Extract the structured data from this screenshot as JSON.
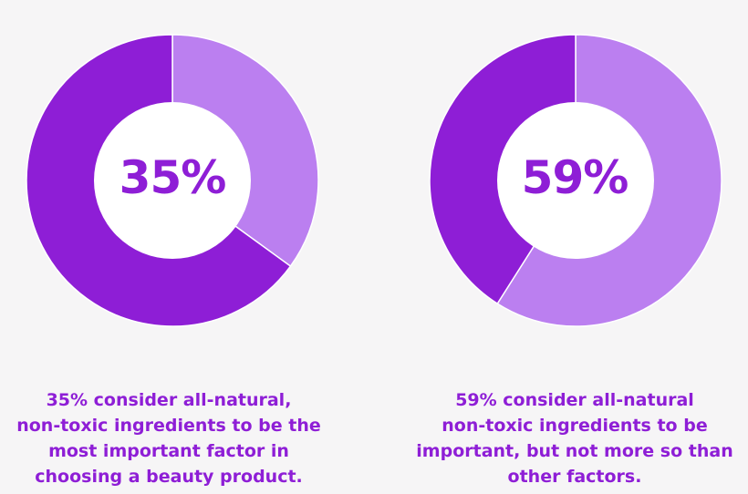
{
  "colors": {
    "background": "#f6f5f6",
    "dark": "#8e1ed6",
    "light": "#bb7ff0",
    "center": "#ffffff",
    "text": "#8e1ed6"
  },
  "chart_data": [
    {
      "type": "pie",
      "variant": "donut",
      "center_label": "35%",
      "slices": [
        {
          "name": "consider all-natural, non-toxic ingredients to be the most important factor",
          "value": 35,
          "color": "#bb7ff0"
        },
        {
          "name": "other",
          "value": 65,
          "color": "#8e1ed6"
        }
      ],
      "caption_lines": [
        "35% consider all-natural,",
        "non-toxic ingredients to be the",
        "most important factor in",
        "choosing a beauty product."
      ]
    },
    {
      "type": "pie",
      "variant": "donut",
      "center_label": "59%",
      "slices": [
        {
          "name": "consider all-natural non-toxic ingredients important, but not more so than other factors",
          "value": 59,
          "color": "#bb7ff0"
        },
        {
          "name": "other",
          "value": 41,
          "color": "#8e1ed6"
        }
      ],
      "caption_lines": [
        "59% consider all-natural",
        "non-toxic ingredients to be",
        "important, but not more so than",
        "other factors."
      ]
    }
  ]
}
